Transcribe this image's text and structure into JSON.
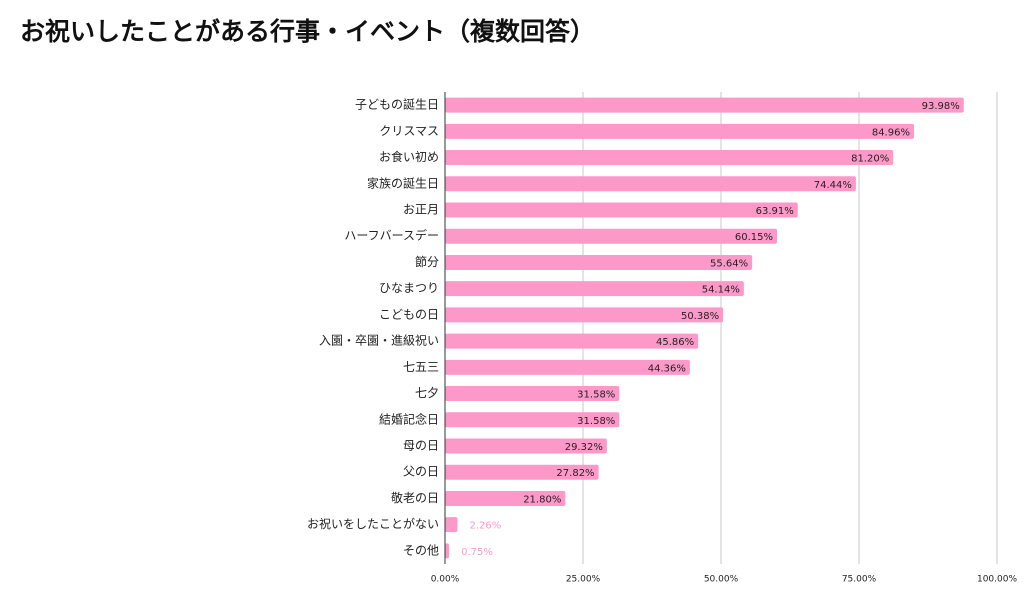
{
  "chart_data": {
    "type": "bar",
    "orientation": "horizontal",
    "title": "お祝いしたことがある行事・イベント（複数回答）",
    "categories": [
      "子どもの誕生日",
      "クリスマス",
      "お食い初め",
      "家族の誕生日",
      "お正月",
      "ハーフバースデー",
      "節分",
      "ひなまつり",
      "こどもの日",
      "入園・卒園・進級祝い",
      "七五三",
      "七夕",
      "結婚記念日",
      "母の日",
      "父の日",
      "敬老の日",
      "お祝いをしたことがない",
      "その他"
    ],
    "values": [
      93.98,
      84.96,
      81.2,
      74.44,
      63.91,
      60.15,
      55.64,
      54.14,
      50.38,
      45.86,
      44.36,
      31.58,
      31.58,
      29.32,
      27.82,
      21.8,
      2.26,
      0.75
    ],
    "value_labels": [
      "93.98%",
      "84.96%",
      "81.20%",
      "74.44%",
      "63.91%",
      "60.15%",
      "55.64%",
      "54.14%",
      "50.38%",
      "45.86%",
      "44.36%",
      "31.58%",
      "31.58%",
      "29.32%",
      "27.82%",
      "21.80%",
      "2.26%",
      "0.75%"
    ],
    "color": "#fd99c9",
    "xlim": [
      0,
      100
    ],
    "xticks": [
      {
        "value": 0,
        "label": "0.00%"
      },
      {
        "value": 25,
        "label": "25.00%"
      },
      {
        "value": 50,
        "label": "50.00%"
      },
      {
        "value": 75,
        "label": "75.00%"
      },
      {
        "value": 100,
        "label": "100.00%"
      }
    ],
    "grid": true
  }
}
